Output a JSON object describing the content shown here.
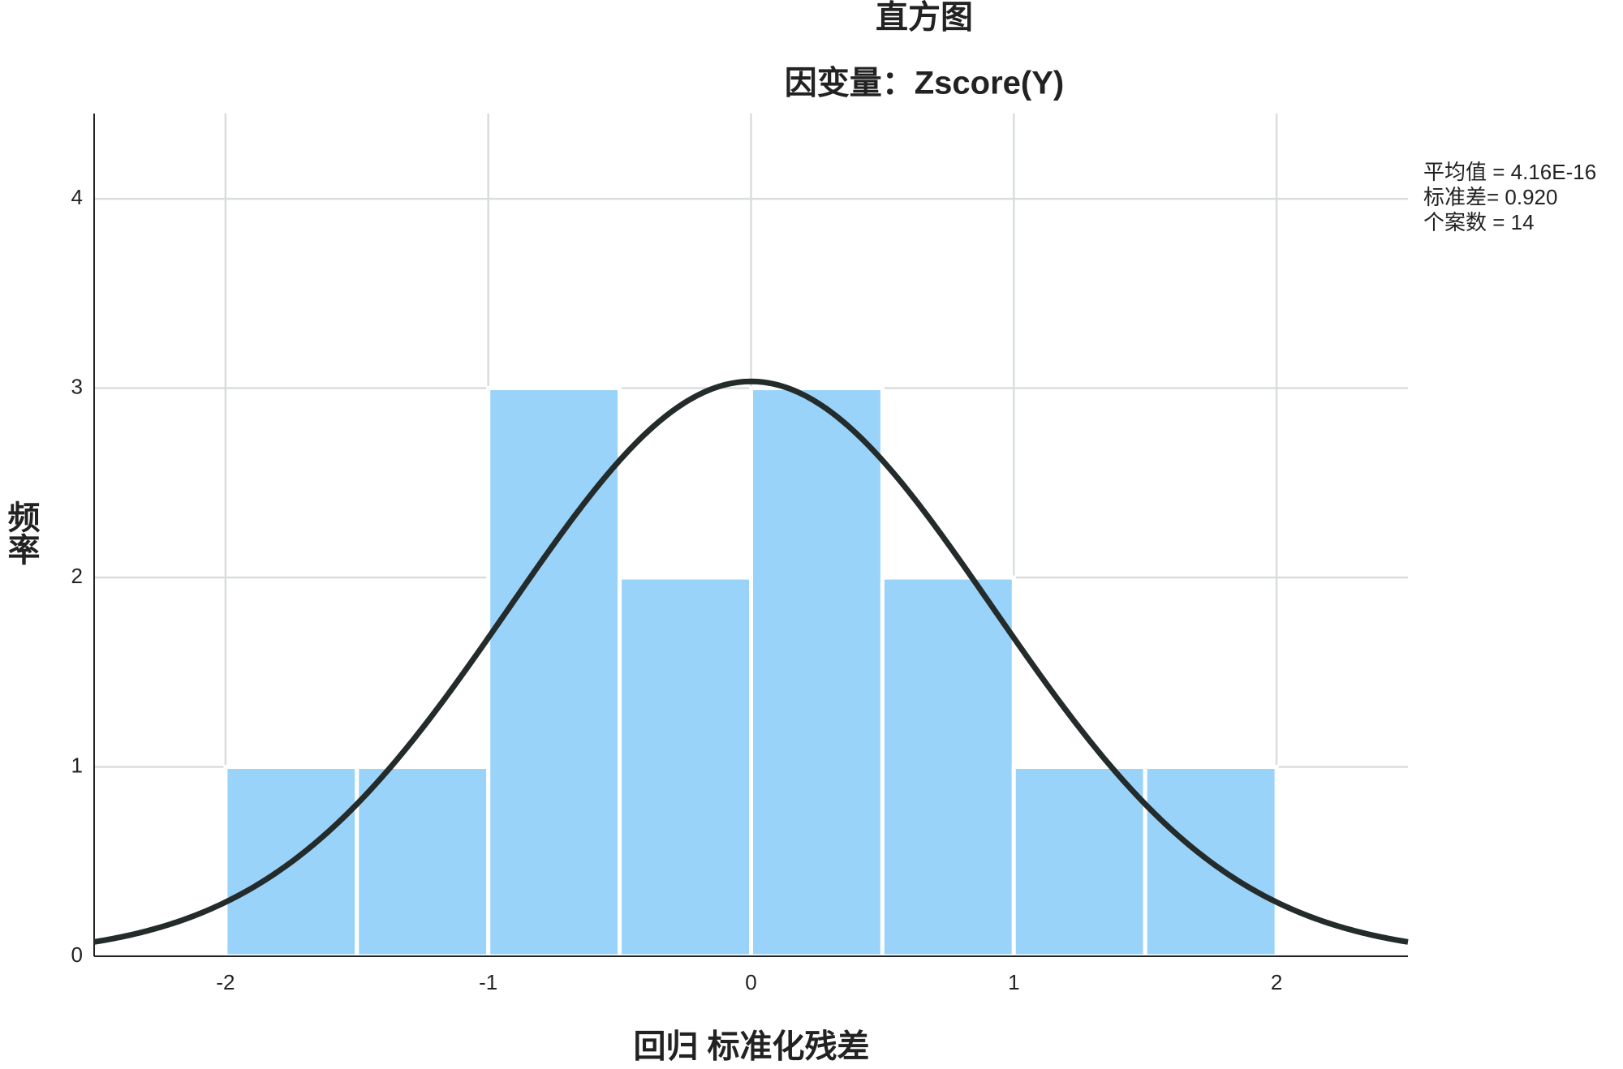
{
  "chart_data": {
    "type": "histogram",
    "title": "直方图",
    "subtitle": "因变量：Zscore(Y)",
    "x_label": "回归 标准化残差",
    "y_label": "频率",
    "bins": [
      -2,
      -1.5,
      -1,
      -0.5,
      0,
      0.5,
      1,
      1.5,
      2
    ],
    "values": [
      1,
      1,
      3,
      2,
      3,
      2,
      1,
      1
    ],
    "color": "#9ad3fa",
    "curve_color": "#232b2b",
    "stats": [
      {
        "label": "平均值 = 4.16E-16",
        "value": 4.16e-16
      },
      {
        "label": "标准差= 0.920",
        "value": 0.92
      },
      {
        "label": "个案数 = 14",
        "value": 14
      }
    ],
    "xlim": [
      -2.5,
      2.5
    ],
    "xticks": [
      -2,
      -1,
      0,
      1,
      2
    ],
    "ylim": [
      0,
      4.45
    ],
    "yticks": [
      0,
      1,
      2,
      3,
      4
    ],
    "grid": true
  }
}
